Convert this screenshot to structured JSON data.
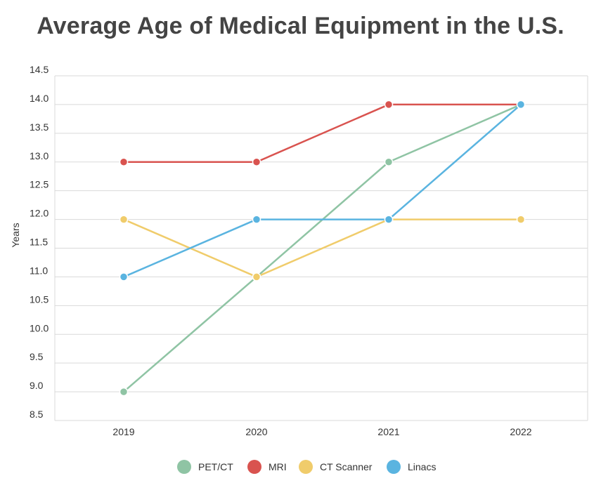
{
  "chart_data": {
    "type": "line",
    "title": "Average Age of Medical Equipment in the U.S.",
    "xlabel": "",
    "ylabel": "Years",
    "categories": [
      "2019",
      "2020",
      "2021",
      "2022"
    ],
    "ylim": [
      8.5,
      14.5
    ],
    "yticks": [
      "14.5",
      "14.0",
      "13.5",
      "13.0",
      "12.5",
      "12.0",
      "11.5",
      "11.0",
      "10.5",
      "10.0",
      "9.5",
      "9.0",
      "8.5"
    ],
    "grid": true,
    "legend_position": "bottom",
    "series": [
      {
        "name": "PET/CT",
        "color": "#8fc4a4",
        "values": [
          9,
          11,
          13,
          14
        ]
      },
      {
        "name": "MRI",
        "color": "#d9534f",
        "values": [
          13,
          13,
          14,
          14
        ]
      },
      {
        "name": "CT Scanner",
        "color": "#f0cc6b",
        "values": [
          12,
          11,
          12,
          12
        ]
      },
      {
        "name": "Linacs",
        "color": "#5ab4e0",
        "values": [
          11,
          12,
          12,
          14
        ]
      }
    ]
  }
}
